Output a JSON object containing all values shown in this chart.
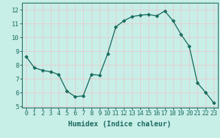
{
  "x": [
    0,
    1,
    2,
    3,
    4,
    5,
    6,
    7,
    8,
    9,
    10,
    11,
    12,
    13,
    14,
    15,
    16,
    17,
    18,
    19,
    20,
    21,
    22,
    23
  ],
  "y": [
    8.6,
    7.8,
    7.6,
    7.5,
    7.3,
    6.1,
    5.7,
    5.75,
    7.3,
    7.25,
    8.8,
    10.75,
    11.2,
    11.5,
    11.6,
    11.65,
    11.55,
    11.9,
    11.2,
    10.2,
    9.35,
    6.7,
    6.0,
    5.25
  ],
  "line_color": "#1a6b5e",
  "marker": "D",
  "marker_size": 2.5,
  "bg_color": "#c8eee8",
  "grid_color": "#e8c8c8",
  "xlabel": "Humidex (Indice chaleur)",
  "xlim": [
    -0.5,
    23.5
  ],
  "ylim": [
    4.9,
    12.5
  ],
  "yticks": [
    5,
    6,
    7,
    8,
    9,
    10,
    11,
    12
  ],
  "xticks": [
    0,
    1,
    2,
    3,
    4,
    5,
    6,
    7,
    8,
    9,
    10,
    11,
    12,
    13,
    14,
    15,
    16,
    17,
    18,
    19,
    20,
    21,
    22,
    23
  ],
  "tick_color": "#1a6b5e",
  "label_fontsize": 6.5,
  "xlabel_fontsize": 7.5,
  "linewidth": 1.0
}
